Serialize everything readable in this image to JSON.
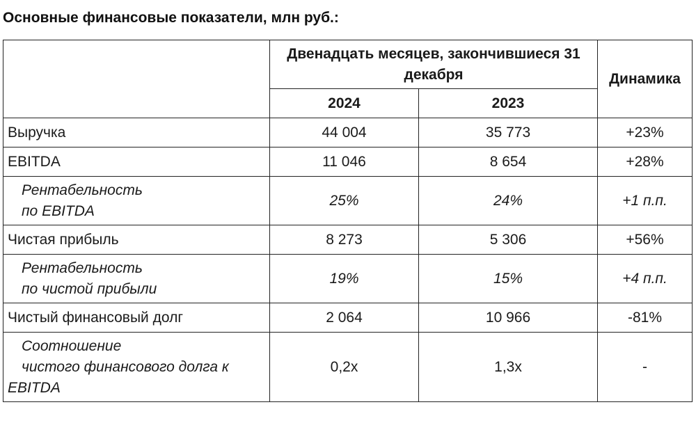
{
  "title": "Основные финансовые показатели, млн руб.:",
  "header": {
    "period": "Двенадцать месяцев, закончившиеся 31 декабря",
    "year1": "2024",
    "year2": "2023",
    "dynamics": "Динамика"
  },
  "rows": [
    {
      "label": "Выручка",
      "v1": "44 004",
      "v2": "35 773",
      "dyn": "+23%"
    },
    {
      "label": "EBITDA",
      "v1": "11 046",
      "v2": "8 654",
      "dyn": "+28%"
    },
    {
      "label_line1": "Рентабельность",
      "label_line2": "по EBITDA",
      "v1": "25%",
      "v2": "24%",
      "dyn": "+1 п.п."
    },
    {
      "label": "Чистая прибыль",
      "v1": "8 273",
      "v2": "5 306",
      "dyn": "+56%"
    },
    {
      "label_line1": "Рентабельность",
      "label_line2": "по чистой прибыли",
      "v1": "19%",
      "v2": "15%",
      "dyn": "+4 п.п."
    },
    {
      "label": "Чистый финансовый долг",
      "v1": "2 064",
      "v2": "10 966",
      "dyn": "-81%"
    },
    {
      "label_line1": "Соотношение",
      "label_line2": "чистого финансового долга к",
      "label_line3": "EBITDA",
      "v1": "0,2x",
      "v2": "1,3x",
      "dyn": "-"
    }
  ]
}
